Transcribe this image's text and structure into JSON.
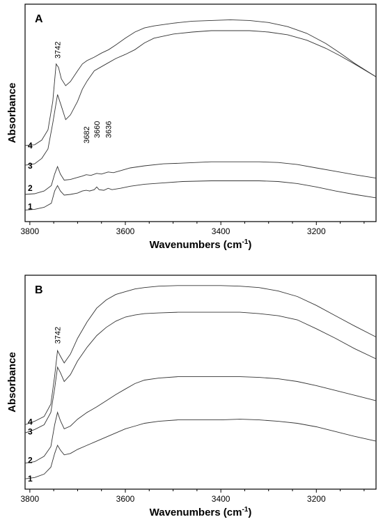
{
  "chart_data": [
    {
      "type": "line",
      "panel": "A",
      "xlabel": "Wavenumbers (cm-1)",
      "xlabel_main": "Wavenumbers (cm",
      "xlabel_sup": "-1",
      "xlabel_tail": ")",
      "ylabel": "Absorbance",
      "xlim": [
        3810,
        3075
      ],
      "x_ticks": [
        3800,
        3600,
        3400,
        3200
      ],
      "x_tick_labels": [
        "3800",
        "3600",
        "3400",
        "3200"
      ],
      "grid": false,
      "y_tick_labels": false,
      "series": [
        {
          "name": "1",
          "points": [
            [
              3810,
              0.02
            ],
            [
              3790,
              0.03
            ],
            [
              3770,
              0.06
            ],
            [
              3755,
              0.12
            ],
            [
              3748,
              0.3
            ],
            [
              3742,
              0.38
            ],
            [
              3736,
              0.3
            ],
            [
              3728,
              0.24
            ],
            [
              3715,
              0.25
            ],
            [
              3700,
              0.27
            ],
            [
              3690,
              0.3
            ],
            [
              3682,
              0.31
            ],
            [
              3675,
              0.3
            ],
            [
              3665,
              0.32
            ],
            [
              3660,
              0.36
            ],
            [
              3655,
              0.32
            ],
            [
              3645,
              0.31
            ],
            [
              3636,
              0.34
            ],
            [
              3628,
              0.32
            ],
            [
              3610,
              0.34
            ],
            [
              3590,
              0.37
            ],
            [
              3560,
              0.4
            ],
            [
              3520,
              0.42
            ],
            [
              3480,
              0.44
            ],
            [
              3420,
              0.45
            ],
            [
              3360,
              0.45
            ],
            [
              3320,
              0.45
            ],
            [
              3280,
              0.44
            ],
            [
              3240,
              0.41
            ],
            [
              3200,
              0.36
            ],
            [
              3160,
              0.3
            ],
            [
              3120,
              0.25
            ],
            [
              3075,
              0.2
            ]
          ]
        },
        {
          "name": "2",
          "points": [
            [
              3810,
              0.25
            ],
            [
              3790,
              0.26
            ],
            [
              3770,
              0.3
            ],
            [
              3755,
              0.38
            ],
            [
              3748,
              0.55
            ],
            [
              3742,
              0.66
            ],
            [
              3736,
              0.55
            ],
            [
              3728,
              0.46
            ],
            [
              3715,
              0.47
            ],
            [
              3700,
              0.5
            ],
            [
              3690,
              0.52
            ],
            [
              3682,
              0.54
            ],
            [
              3672,
              0.53
            ],
            [
              3660,
              0.56
            ],
            [
              3650,
              0.55
            ],
            [
              3636,
              0.58
            ],
            [
              3625,
              0.57
            ],
            [
              3610,
              0.6
            ],
            [
              3590,
              0.64
            ],
            [
              3560,
              0.67
            ],
            [
              3520,
              0.7
            ],
            [
              3480,
              0.71
            ],
            [
              3420,
              0.73
            ],
            [
              3360,
              0.73
            ],
            [
              3320,
              0.73
            ],
            [
              3280,
              0.72
            ],
            [
              3240,
              0.69
            ],
            [
              3200,
              0.64
            ],
            [
              3160,
              0.59
            ],
            [
              3120,
              0.54
            ],
            [
              3075,
              0.49
            ]
          ]
        },
        {
          "name": "3",
          "points": [
            [
              3810,
              0.68
            ],
            [
              3790,
              0.7
            ],
            [
              3775,
              0.78
            ],
            [
              3762,
              0.92
            ],
            [
              3752,
              1.3
            ],
            [
              3742,
              1.72
            ],
            [
              3734,
              1.55
            ],
            [
              3725,
              1.35
            ],
            [
              3715,
              1.42
            ],
            [
              3700,
              1.62
            ],
            [
              3690,
              1.8
            ],
            [
              3680,
              1.92
            ],
            [
              3665,
              2.07
            ],
            [
              3650,
              2.13
            ],
            [
              3635,
              2.19
            ],
            [
              3620,
              2.25
            ],
            [
              3600,
              2.31
            ],
            [
              3580,
              2.38
            ],
            [
              3560,
              2.48
            ],
            [
              3540,
              2.55
            ],
            [
              3500,
              2.61
            ],
            [
              3460,
              2.64
            ],
            [
              3420,
              2.66
            ],
            [
              3380,
              2.66
            ],
            [
              3340,
              2.66
            ],
            [
              3300,
              2.64
            ],
            [
              3260,
              2.6
            ],
            [
              3220,
              2.52
            ],
            [
              3180,
              2.4
            ],
            [
              3150,
              2.29
            ],
            [
              3120,
              2.17
            ],
            [
              3075,
              1.98
            ]
          ]
        },
        {
          "name": "4",
          "points": [
            [
              3810,
              0.97
            ],
            [
              3790,
              0.98
            ],
            [
              3775,
              1.05
            ],
            [
              3762,
              1.2
            ],
            [
              3752,
              1.62
            ],
            [
              3745,
              2.17
            ],
            [
              3740,
              2.12
            ],
            [
              3734,
              1.95
            ],
            [
              3725,
              1.85
            ],
            [
              3715,
              1.91
            ],
            [
              3700,
              2.07
            ],
            [
              3690,
              2.17
            ],
            [
              3680,
              2.22
            ],
            [
              3665,
              2.27
            ],
            [
              3650,
              2.33
            ],
            [
              3635,
              2.38
            ],
            [
              3620,
              2.45
            ],
            [
              3600,
              2.55
            ],
            [
              3580,
              2.64
            ],
            [
              3560,
              2.7
            ],
            [
              3540,
              2.73
            ],
            [
              3500,
              2.77
            ],
            [
              3460,
              2.8
            ],
            [
              3420,
              2.81
            ],
            [
              3380,
              2.82
            ],
            [
              3340,
              2.81
            ],
            [
              3300,
              2.78
            ],
            [
              3260,
              2.72
            ],
            [
              3220,
              2.62
            ],
            [
              3180,
              2.47
            ],
            [
              3150,
              2.33
            ],
            [
              3120,
              2.18
            ],
            [
              3075,
              1.98
            ]
          ]
        }
      ],
      "labels": [
        {
          "text": "1",
          "x": 3808,
          "y": 0.07
        },
        {
          "text": "2",
          "x": 3808,
          "y": 0.34
        },
        {
          "text": "3",
          "x": 3808,
          "y": 0.67
        },
        {
          "text": "4",
          "x": 3808,
          "y": 0.97
        }
      ],
      "annotations": [
        {
          "text": "3742",
          "x": 3742,
          "y": 2.25
        },
        {
          "text": "3682",
          "x": 3682,
          "y": 1.0
        },
        {
          "text": "3660",
          "x": 3660,
          "y": 1.08
        },
        {
          "text": "3636",
          "x": 3636,
          "y": 1.08
        }
      ]
    },
    {
      "type": "line",
      "panel": "B",
      "xlabel": "Wavenumbers (cm-1)",
      "xlabel_main": "Wavenumbers (cm",
      "xlabel_sup": "-1",
      "xlabel_tail": ")",
      "ylabel": "Absorbance",
      "xlim": [
        3810,
        3075
      ],
      "x_ticks": [
        3800,
        3600,
        3400,
        3200
      ],
      "x_tick_labels": [
        "3800",
        "3600",
        "3400",
        "3200"
      ],
      "grid": false,
      "y_tick_labels": false,
      "series": [
        {
          "name": "1",
          "points": [
            [
              3810,
              0.03
            ],
            [
              3790,
              0.05
            ],
            [
              3770,
              0.1
            ],
            [
              3756,
              0.2
            ],
            [
              3748,
              0.4
            ],
            [
              3742,
              0.52
            ],
            [
              3736,
              0.45
            ],
            [
              3728,
              0.38
            ],
            [
              3715,
              0.4
            ],
            [
              3700,
              0.46
            ],
            [
              3680,
              0.52
            ],
            [
              3660,
              0.58
            ],
            [
              3640,
              0.64
            ],
            [
              3620,
              0.7
            ],
            [
              3600,
              0.76
            ],
            [
              3580,
              0.8
            ],
            [
              3560,
              0.84
            ],
            [
              3530,
              0.87
            ],
            [
              3490,
              0.89
            ],
            [
              3440,
              0.89
            ],
            [
              3400,
              0.89
            ],
            [
              3360,
              0.9
            ],
            [
              3320,
              0.89
            ],
            [
              3280,
              0.87
            ],
            [
              3240,
              0.84
            ],
            [
              3200,
              0.79
            ],
            [
              3160,
              0.72
            ],
            [
              3120,
              0.65
            ],
            [
              3075,
              0.58
            ]
          ]
        },
        {
          "name": "2",
          "points": [
            [
              3810,
              0.26
            ],
            [
              3790,
              0.28
            ],
            [
              3770,
              0.36
            ],
            [
              3756,
              0.5
            ],
            [
              3748,
              0.82
            ],
            [
              3742,
              1.0
            ],
            [
              3736,
              0.88
            ],
            [
              3728,
              0.76
            ],
            [
              3715,
              0.8
            ],
            [
              3700,
              0.9
            ],
            [
              3680,
              1.0
            ],
            [
              3660,
              1.08
            ],
            [
              3640,
              1.17
            ],
            [
              3620,
              1.26
            ],
            [
              3600,
              1.34
            ],
            [
              3580,
              1.42
            ],
            [
              3560,
              1.47
            ],
            [
              3530,
              1.5
            ],
            [
              3490,
              1.52
            ],
            [
              3440,
              1.52
            ],
            [
              3400,
              1.52
            ],
            [
              3360,
              1.52
            ],
            [
              3320,
              1.51
            ],
            [
              3280,
              1.49
            ],
            [
              3240,
              1.45
            ],
            [
              3200,
              1.39
            ],
            [
              3160,
              1.32
            ],
            [
              3120,
              1.25
            ],
            [
              3075,
              1.17
            ]
          ]
        },
        {
          "name": "3",
          "points": [
            [
              3810,
              0.7
            ],
            [
              3790,
              0.75
            ],
            [
              3770,
              0.82
            ],
            [
              3756,
              1.0
            ],
            [
              3748,
              1.35
            ],
            [
              3742,
              1.66
            ],
            [
              3736,
              1.58
            ],
            [
              3728,
              1.45
            ],
            [
              3715,
              1.55
            ],
            [
              3700,
              1.75
            ],
            [
              3680,
              1.95
            ],
            [
              3660,
              2.12
            ],
            [
              3640,
              2.24
            ],
            [
              3620,
              2.33
            ],
            [
              3600,
              2.39
            ],
            [
              3580,
              2.42
            ],
            [
              3560,
              2.44
            ],
            [
              3530,
              2.45
            ],
            [
              3490,
              2.46
            ],
            [
              3440,
              2.46
            ],
            [
              3400,
              2.46
            ],
            [
              3360,
              2.46
            ],
            [
              3320,
              2.44
            ],
            [
              3280,
              2.41
            ],
            [
              3240,
              2.35
            ],
            [
              3200,
              2.22
            ],
            [
              3160,
              2.08
            ],
            [
              3120,
              1.93
            ],
            [
              3075,
              1.78
            ]
          ]
        },
        {
          "name": "4",
          "points": [
            [
              3810,
              0.82
            ],
            [
              3790,
              0.87
            ],
            [
              3770,
              0.94
            ],
            [
              3756,
              1.12
            ],
            [
              3748,
              1.53
            ],
            [
              3742,
              1.9
            ],
            [
              3736,
              1.82
            ],
            [
              3728,
              1.72
            ],
            [
              3715,
              1.85
            ],
            [
              3700,
              2.08
            ],
            [
              3680,
              2.32
            ],
            [
              3660,
              2.52
            ],
            [
              3640,
              2.64
            ],
            [
              3620,
              2.72
            ],
            [
              3600,
              2.76
            ],
            [
              3580,
              2.8
            ],
            [
              3560,
              2.82
            ],
            [
              3530,
              2.84
            ],
            [
              3490,
              2.85
            ],
            [
              3440,
              2.85
            ],
            [
              3400,
              2.85
            ],
            [
              3360,
              2.84
            ],
            [
              3320,
              2.82
            ],
            [
              3280,
              2.77
            ],
            [
              3240,
              2.69
            ],
            [
              3200,
              2.56
            ],
            [
              3160,
              2.41
            ],
            [
              3120,
              2.26
            ],
            [
              3075,
              2.1
            ]
          ]
        }
      ],
      "labels": [
        {
          "text": "1",
          "x": 3808,
          "y": 0.03
        },
        {
          "text": "2",
          "x": 3808,
          "y": 0.3
        },
        {
          "text": "3",
          "x": 3808,
          "y": 0.72
        },
        {
          "text": "4",
          "x": 3808,
          "y": 0.86
        }
      ],
      "annotations": [
        {
          "text": "3742",
          "x": 3742,
          "y": 2.0
        }
      ]
    }
  ]
}
